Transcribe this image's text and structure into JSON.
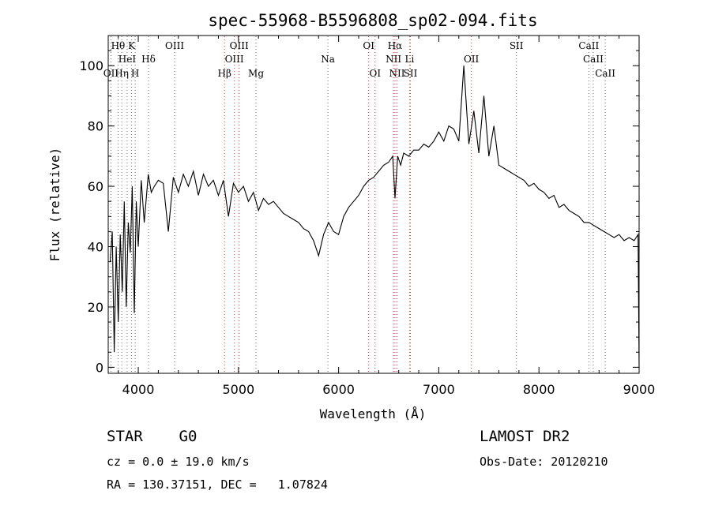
{
  "chart_data": {
    "type": "line",
    "title": "spec-55968-B5596808_sp02-094.fits",
    "xlabel": "Wavelength (Å)",
    "ylabel": "Flux (relative)",
    "xlim": [
      3700,
      9000
    ],
    "ylim": [
      -2,
      110
    ],
    "xticks": [
      4000,
      5000,
      6000,
      7000,
      8000,
      9000
    ],
    "yticks": [
      0,
      20,
      40,
      60,
      80,
      100
    ],
    "series": [
      {
        "x": [
          3720,
          3740,
          3760,
          3780,
          3800,
          3820,
          3840,
          3860,
          3880,
          3900,
          3920,
          3940,
          3960,
          3980,
          4000,
          4030,
          4060,
          4100,
          4130,
          4160,
          4200,
          4250,
          4300,
          4350,
          4400,
          4450,
          4500,
          4550,
          4600,
          4650,
          4700,
          4750,
          4800,
          4850,
          4900,
          4950,
          5000,
          5050,
          5100,
          5150,
          5200,
          5250,
          5300,
          5350,
          5400,
          5450,
          5500,
          5550,
          5600,
          5650,
          5700,
          5750,
          5800,
          5850,
          5900,
          5950,
          6000,
          6050,
          6100,
          6150,
          6200,
          6250,
          6300,
          6350,
          6400,
          6450,
          6500,
          6540,
          6563,
          6590,
          6620,
          6650,
          6700,
          6750,
          6800,
          6850,
          6900,
          6950,
          7000,
          7050,
          7100,
          7150,
          7200,
          7250,
          7300,
          7350,
          7400,
          7450,
          7500,
          7550,
          7600,
          7650,
          7700,
          7750,
          7800,
          7850,
          7900,
          7950,
          8000,
          8050,
          8100,
          8150,
          8200,
          8250,
          8300,
          8350,
          8400,
          8450,
          8500,
          8550,
          8600,
          8650,
          8700,
          8750,
          8800,
          8850,
          8900,
          8950,
          8990,
          9000
        ],
        "y": [
          35,
          45,
          5,
          40,
          15,
          44,
          25,
          55,
          20,
          48,
          38,
          60,
          18,
          55,
          40,
          62,
          48,
          64,
          58,
          60,
          62,
          61,
          45,
          63,
          58,
          64,
          60,
          65,
          57,
          64,
          60,
          62,
          57,
          62,
          50,
          61,
          58,
          60,
          55,
          58,
          52,
          56,
          54,
          55,
          53,
          51,
          50,
          49,
          48,
          46,
          45,
          42,
          37,
          44,
          48,
          45,
          44,
          50,
          53,
          55,
          57,
          60,
          62,
          63,
          65,
          67,
          68,
          70,
          56,
          70,
          67,
          71,
          70,
          72,
          72,
          74,
          73,
          75,
          78,
          75,
          80,
          79,
          75,
          100,
          74,
          85,
          71,
          90,
          70,
          80,
          67,
          66,
          65,
          64,
          63,
          62,
          60,
          61,
          59,
          58,
          56,
          57,
          53,
          54,
          52,
          51,
          50,
          48,
          48,
          47,
          46,
          45,
          44,
          43,
          44,
          42,
          43,
          42,
          44,
          0
        ]
      }
    ],
    "lines": [
      {
        "name": "Hθ",
        "x": 3798,
        "row": 1,
        "color": "#666666"
      },
      {
        "name": "K",
        "x": 3934,
        "row": 1,
        "color": "#666666"
      },
      {
        "name": "HeI",
        "x": 3889,
        "row": 2,
        "color": "#666666"
      },
      {
        "name": "Hδ",
        "x": 4102,
        "row": 2,
        "color": "#666666"
      },
      {
        "name": "OII",
        "x": 3727,
        "row": 3,
        "color": "#666666"
      },
      {
        "name": "Hη",
        "x": 3835,
        "row": 3,
        "color": "#666666"
      },
      {
        "name": "H",
        "x": 3969,
        "row": 3,
        "color": "#666666"
      },
      {
        "name": "OIII",
        "x": 4363,
        "row": 1,
        "color": "#666666"
      },
      {
        "name": "OIII",
        "x": 5007,
        "row": 1,
        "color": "#cc3333"
      },
      {
        "name": "OIII",
        "x": 4959,
        "row": 2,
        "color": "#cc3333"
      },
      {
        "name": "Hβ",
        "x": 4861,
        "row": 3,
        "color": "#cc3333"
      },
      {
        "name": "Mg",
        "x": 5175,
        "row": 3,
        "color": "#666666"
      },
      {
        "name": "Na",
        "x": 5893,
        "row": 2,
        "color": "#666666"
      },
      {
        "name": "OI",
        "x": 6300,
        "row": 1,
        "color": "#cc3333"
      },
      {
        "name": "OI",
        "x": 6364,
        "row": 3,
        "color": "#cc3333"
      },
      {
        "name": "Hα",
        "x": 6563,
        "row": 1,
        "color": "#cc3333"
      },
      {
        "name": "NII",
        "x": 6548,
        "row": 2,
        "color": "#cc3333"
      },
      {
        "name": "Li",
        "x": 6708,
        "row": 2,
        "color": "#666666"
      },
      {
        "name": "NII",
        "x": 6583,
        "row": 3,
        "color": "#cc3333"
      },
      {
        "name": "SII",
        "x": 6717,
        "row": 3,
        "color": "#cc3333"
      },
      {
        "name": "OII",
        "x": 7325,
        "row": 2,
        "color": "#cc3333"
      },
      {
        "name": "SII",
        "x": 7775,
        "row": 1,
        "color": "#666666"
      },
      {
        "name": "CaII",
        "x": 8498,
        "row": 1,
        "color": "#666666"
      },
      {
        "name": "CaII",
        "x": 8542,
        "row": 2,
        "color": "#666666"
      },
      {
        "name": "CaII",
        "x": 8662,
        "row": 3,
        "color": "#666666"
      }
    ]
  },
  "info": {
    "class": "STAR    G0",
    "survey": "LAMOST DR2",
    "cz": "cz = 0.0 ± 19.0 km/s",
    "obs_date": "Obs-Date: 20120210",
    "radec": "RA = 130.37151, DEC =   1.07824"
  }
}
